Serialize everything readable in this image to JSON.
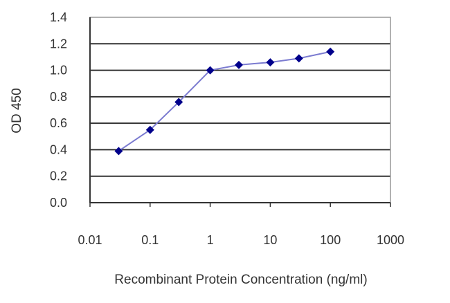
{
  "chart_data": {
    "type": "line",
    "title": "",
    "xlabel": "Recombinant Protein Concentration (ng/ml)",
    "ylabel": "OD 450",
    "x_scale": "log",
    "xlim": [
      0.01,
      1000
    ],
    "ylim": [
      0.0,
      1.4
    ],
    "x_ticks": [
      "0.01",
      "0.1",
      "1",
      "10",
      "100",
      "1000"
    ],
    "y_ticks": [
      "0.0",
      "0.2",
      "0.4",
      "0.6",
      "0.8",
      "1.0",
      "1.2",
      "1.4"
    ],
    "grid": "horizontal",
    "legend": "none",
    "series": [
      {
        "x": [
          0.03,
          0.1,
          0.3,
          1,
          3,
          10,
          30,
          100
        ],
        "y": [
          0.39,
          0.55,
          0.76,
          1.0,
          1.04,
          1.06,
          1.09,
          1.14
        ],
        "line_color": "#7b7bd0",
        "marker_color": "#00008b",
        "marker": "diamond"
      }
    ]
  }
}
